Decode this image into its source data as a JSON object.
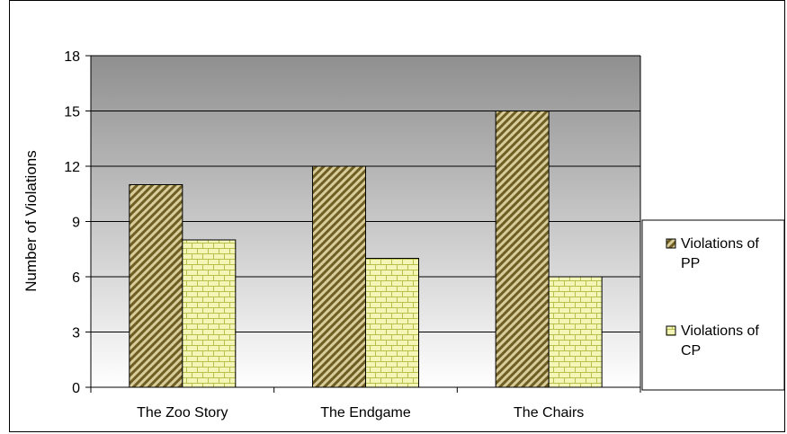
{
  "chart_data": {
    "type": "bar",
    "categories": [
      "The Zoo Story",
      "The Endgame",
      "The Chairs"
    ],
    "series": [
      {
        "name_lines": [
          "Violations of",
          "PP"
        ],
        "values": [
          11,
          12,
          15
        ],
        "pattern": "diagonal-hatch",
        "colors": {
          "stroke": "#7a6a2a",
          "fill_light": "#d8cc9a",
          "fill_dark": "#6f5f24"
        }
      },
      {
        "name_lines": [
          "Violations of",
          "CP"
        ],
        "values": [
          8,
          7,
          6
        ],
        "pattern": "brick",
        "colors": {
          "stroke": "#9aa23a",
          "fill": "#f4f6b8",
          "line": "#b7c04a"
        }
      }
    ],
    "ylabel": "Number of Violations",
    "ylim": [
      0,
      18
    ],
    "yticks": [
      0,
      3,
      6,
      9,
      12,
      15,
      18
    ],
    "grid": true,
    "legend_position": "right",
    "plot_background": "gradient-gray"
  }
}
